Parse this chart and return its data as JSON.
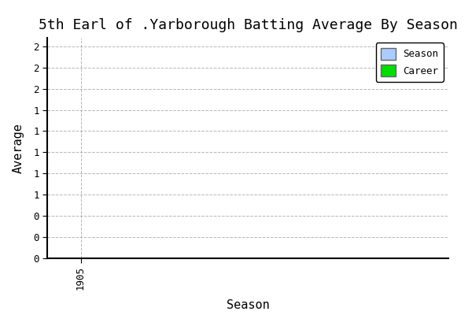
{
  "title": "5th Earl of .Yarborough Batting Average By Season",
  "xlabel": "Season",
  "ylabel": "Average",
  "xlim": [
    1904.5,
    1910.5
  ],
  "ylim": [
    0.0,
    2.6
  ],
  "y_positions": [
    0.0,
    0.25,
    0.5,
    0.75,
    1.0,
    1.25,
    1.5,
    1.75,
    2.0,
    2.25,
    2.5
  ],
  "y_labels": [
    "0",
    "0",
    "0",
    "1",
    "1",
    "1",
    "1",
    "1",
    "2",
    "2",
    "2"
  ],
  "xticks": [
    1905
  ],
  "xtick_labels": [
    "1905"
  ],
  "season_color": "#aaccff",
  "career_color": "#00dd00",
  "background_color": "#ffffff",
  "grid_color": "#999999",
  "legend_labels": [
    "Season",
    "Career"
  ],
  "title_fontsize": 13,
  "axis_label_fontsize": 11
}
